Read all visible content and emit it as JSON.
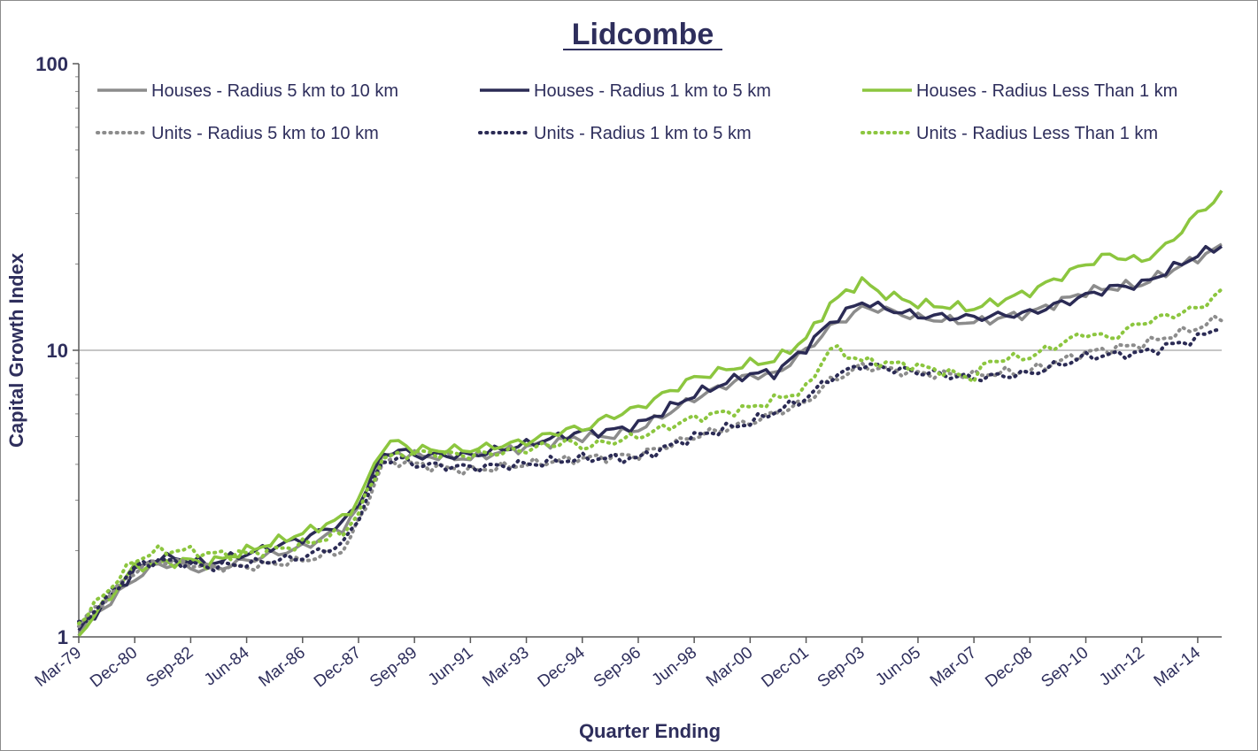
{
  "chart_data": {
    "type": "line",
    "title": "Lidcombe",
    "xlabel": "Quarter Ending",
    "ylabel": "Capital Growth Index",
    "yscale": "log",
    "ylim": [
      1,
      100
    ],
    "y_ticks": [
      "1",
      "10",
      "100"
    ],
    "x_tick_labels": [
      "Mar-79",
      "Dec-80",
      "Sep-82",
      "Jun-84",
      "Mar-86",
      "Dec-87",
      "Sep-89",
      "Jun-91",
      "Mar-93",
      "Dec-94",
      "Sep-96",
      "Jun-98",
      "Mar-00",
      "Dec-01",
      "Sep-03",
      "Jun-05",
      "Mar-07",
      "Dec-08",
      "Sep-10",
      "Jun-12",
      "Mar-14"
    ],
    "grid": "horizontal major at 10",
    "legend_position": "top",
    "x_start": "Mar-79",
    "x_end": "Dec-14",
    "series": [
      {
        "name": "Houses - Radius 5 km to 10 km",
        "color": "#8c8c8c",
        "style": "solid",
        "anchors": [
          [
            "Mar-79",
            1.05
          ],
          [
            "Dec-80",
            1.6
          ],
          [
            "Sep-81",
            1.8
          ],
          [
            "Sep-82",
            1.75
          ],
          [
            "Mar-83",
            1.7
          ],
          [
            "Jun-84",
            1.85
          ],
          [
            "Mar-86",
            2.05
          ],
          [
            "Jun-87",
            2.4
          ],
          [
            "Dec-87",
            2.8
          ],
          [
            "Sep-88",
            4.2
          ],
          [
            "Mar-89",
            4.4
          ],
          [
            "Sep-89",
            4.3
          ],
          [
            "Jun-91",
            4.2
          ],
          [
            "Mar-93",
            4.6
          ],
          [
            "Dec-94",
            5.0
          ],
          [
            "Sep-95",
            5.0
          ],
          [
            "Sep-96",
            5.3
          ],
          [
            "Jun-98",
            6.8
          ],
          [
            "Mar-00",
            8.2
          ],
          [
            "Dec-00",
            8.2
          ],
          [
            "Dec-01",
            10.0
          ],
          [
            "Sep-02",
            12.0
          ],
          [
            "Sep-03",
            14.0
          ],
          [
            "Mar-04",
            14.0
          ],
          [
            "Jun-05",
            13.0
          ],
          [
            "Mar-07",
            12.5
          ],
          [
            "Dec-08",
            13.5
          ],
          [
            "Sep-10",
            16.0
          ],
          [
            "Jun-11",
            16.5
          ],
          [
            "Jun-12",
            17.0
          ],
          [
            "Mar-14",
            21.0
          ],
          [
            "Dec-14",
            23.0
          ]
        ]
      },
      {
        "name": "Houses - Radius 1 km to 5 km",
        "color": "#2b2b55",
        "style": "solid",
        "anchors": [
          [
            "Mar-79",
            1.05
          ],
          [
            "Dec-80",
            1.7
          ],
          [
            "Sep-81",
            1.9
          ],
          [
            "Sep-82",
            1.85
          ],
          [
            "Mar-83",
            1.8
          ],
          [
            "Jun-84",
            1.95
          ],
          [
            "Mar-86",
            2.2
          ],
          [
            "Jun-87",
            2.5
          ],
          [
            "Dec-87",
            2.9
          ],
          [
            "Sep-88",
            4.3
          ],
          [
            "Mar-89",
            4.5
          ],
          [
            "Sep-89",
            4.3
          ],
          [
            "Jun-91",
            4.3
          ],
          [
            "Mar-93",
            4.7
          ],
          [
            "Dec-94",
            5.2
          ],
          [
            "Sep-95",
            5.2
          ],
          [
            "Sep-96",
            5.5
          ],
          [
            "Jun-98",
            7.0
          ],
          [
            "Mar-00",
            8.3
          ],
          [
            "Dec-00",
            8.3
          ],
          [
            "Dec-01",
            10.2
          ],
          [
            "Sep-02",
            12.5
          ],
          [
            "Sep-03",
            14.8
          ],
          [
            "Mar-04",
            14.2
          ],
          [
            "Jun-05",
            13.2
          ],
          [
            "Mar-07",
            13.0
          ],
          [
            "Dec-08",
            13.5
          ],
          [
            "Sep-10",
            15.5
          ],
          [
            "Jun-11",
            16.5
          ],
          [
            "Jun-12",
            17.0
          ],
          [
            "Mar-14",
            21.5
          ],
          [
            "Dec-14",
            23.2
          ]
        ]
      },
      {
        "name": "Houses - Radius Less Than 1 km",
        "color": "#8cc63f",
        "style": "solid",
        "anchors": [
          [
            "Mar-79",
            1.02
          ],
          [
            "Dec-80",
            1.75
          ],
          [
            "Sep-81",
            1.8
          ],
          [
            "Sep-82",
            1.85
          ],
          [
            "Mar-83",
            1.8
          ],
          [
            "Jun-84",
            2.0
          ],
          [
            "Mar-86",
            2.3
          ],
          [
            "Jun-87",
            2.6
          ],
          [
            "Dec-87",
            3.0
          ],
          [
            "Sep-88",
            4.6
          ],
          [
            "Mar-89",
            4.8
          ],
          [
            "Sep-89",
            4.5
          ],
          [
            "Jun-91",
            4.5
          ],
          [
            "Mar-93",
            4.8
          ],
          [
            "Jun-94",
            5.3
          ],
          [
            "Dec-94",
            5.3
          ],
          [
            "Sep-95",
            5.8
          ],
          [
            "Sep-96",
            6.3
          ],
          [
            "Jun-98",
            8.0
          ],
          [
            "Mar-00",
            9.0
          ],
          [
            "Dec-00",
            9.2
          ],
          [
            "Dec-01",
            11.0
          ],
          [
            "Sep-02",
            14.5
          ],
          [
            "Sep-03",
            17.5
          ],
          [
            "Mar-04",
            16.0
          ],
          [
            "Jun-05",
            14.5
          ],
          [
            "Mar-07",
            14.0
          ],
          [
            "Dec-08",
            16.0
          ],
          [
            "Sep-10",
            20.0
          ],
          [
            "Jun-11",
            21.5
          ],
          [
            "Jun-12",
            20.5
          ],
          [
            "Mar-13",
            23.0
          ],
          [
            "Mar-14",
            30.0
          ],
          [
            "Dec-14",
            35.0
          ]
        ]
      },
      {
        "name": "Units - Radius 5 km to 10 km",
        "color": "#8c8c8c",
        "style": "dotted",
        "anchors": [
          [
            "Mar-79",
            1.1
          ],
          [
            "Dec-80",
            1.7
          ],
          [
            "Sep-81",
            1.85
          ],
          [
            "Sep-82",
            1.8
          ],
          [
            "Mar-83",
            1.75
          ],
          [
            "Jun-84",
            1.75
          ],
          [
            "Mar-86",
            1.85
          ],
          [
            "Jun-87",
            2.0
          ],
          [
            "Dec-87",
            2.5
          ],
          [
            "Sep-88",
            4.0
          ],
          [
            "Mar-89",
            4.1
          ],
          [
            "Sep-89",
            4.0
          ],
          [
            "Jun-91",
            3.8
          ],
          [
            "Mar-93",
            4.0
          ],
          [
            "Dec-94",
            4.2
          ],
          [
            "Sep-96",
            4.3
          ],
          [
            "Jun-98",
            5.0
          ],
          [
            "Mar-00",
            5.6
          ],
          [
            "Dec-01",
            6.6
          ],
          [
            "Sep-02",
            7.8
          ],
          [
            "Sep-03",
            8.8
          ],
          [
            "Jun-05",
            8.3
          ],
          [
            "Mar-07",
            8.2
          ],
          [
            "Dec-08",
            8.5
          ],
          [
            "Sep-10",
            9.8
          ],
          [
            "Jun-12",
            10.5
          ],
          [
            "Mar-14",
            12.0
          ],
          [
            "Dec-14",
            13.0
          ]
        ]
      },
      {
        "name": "Units - Radius 1 km to 5 km",
        "color": "#2b2b55",
        "style": "dotted",
        "anchors": [
          [
            "Mar-79",
            1.08
          ],
          [
            "Dec-80",
            1.75
          ],
          [
            "Sep-81",
            1.85
          ],
          [
            "Sep-82",
            1.8
          ],
          [
            "Mar-83",
            1.75
          ],
          [
            "Jun-84",
            1.8
          ],
          [
            "Mar-86",
            1.9
          ],
          [
            "Jun-87",
            2.1
          ],
          [
            "Dec-87",
            2.6
          ],
          [
            "Sep-88",
            4.1
          ],
          [
            "Mar-89",
            4.2
          ],
          [
            "Sep-89",
            4.0
          ],
          [
            "Jun-91",
            3.9
          ],
          [
            "Mar-93",
            4.0
          ],
          [
            "Dec-94",
            4.2
          ],
          [
            "Sep-96",
            4.2
          ],
          [
            "Jun-98",
            5.0
          ],
          [
            "Mar-00",
            5.6
          ],
          [
            "Dec-01",
            6.8
          ],
          [
            "Sep-02",
            8.0
          ],
          [
            "Sep-03",
            8.9
          ],
          [
            "Jun-05",
            8.4
          ],
          [
            "Mar-07",
            8.0
          ],
          [
            "Dec-08",
            8.3
          ],
          [
            "Sep-10",
            9.5
          ],
          [
            "Jun-12",
            9.8
          ],
          [
            "Mar-14",
            11.0
          ],
          [
            "Dec-14",
            12.2
          ]
        ]
      },
      {
        "name": "Units - Radius Less Than 1 km",
        "color": "#8cc63f",
        "style": "dotted",
        "anchors": [
          [
            "Mar-79",
            1.12
          ],
          [
            "Dec-80",
            1.85
          ],
          [
            "Sep-81",
            2.0
          ],
          [
            "Sep-82",
            2.0
          ],
          [
            "Mar-83",
            1.95
          ],
          [
            "Jun-84",
            1.95
          ],
          [
            "Mar-86",
            2.1
          ],
          [
            "Jun-87",
            2.3
          ],
          [
            "Dec-87",
            2.7
          ],
          [
            "Sep-88",
            4.2
          ],
          [
            "Mar-89",
            4.3
          ],
          [
            "Sep-89",
            4.4
          ],
          [
            "Jun-91",
            4.3
          ],
          [
            "Mar-93",
            4.5
          ],
          [
            "Jun-94",
            4.8
          ],
          [
            "Dec-94",
            4.6
          ],
          [
            "Sep-96",
            5.0
          ],
          [
            "Jun-98",
            5.8
          ],
          [
            "Mar-00",
            6.3
          ],
          [
            "Dec-01",
            7.3
          ],
          [
            "Sep-02",
            10.2
          ],
          [
            "Sep-03",
            9.2
          ],
          [
            "Jun-05",
            8.8
          ],
          [
            "Mar-07",
            8.0
          ],
          [
            "Sep-07",
            9.2
          ],
          [
            "Dec-08",
            9.5
          ],
          [
            "Sep-10",
            11.5
          ],
          [
            "Jun-11",
            11.0
          ],
          [
            "Jun-12",
            12.5
          ],
          [
            "Mar-14",
            14.0
          ],
          [
            "Dec-14",
            16.0
          ]
        ]
      }
    ]
  }
}
